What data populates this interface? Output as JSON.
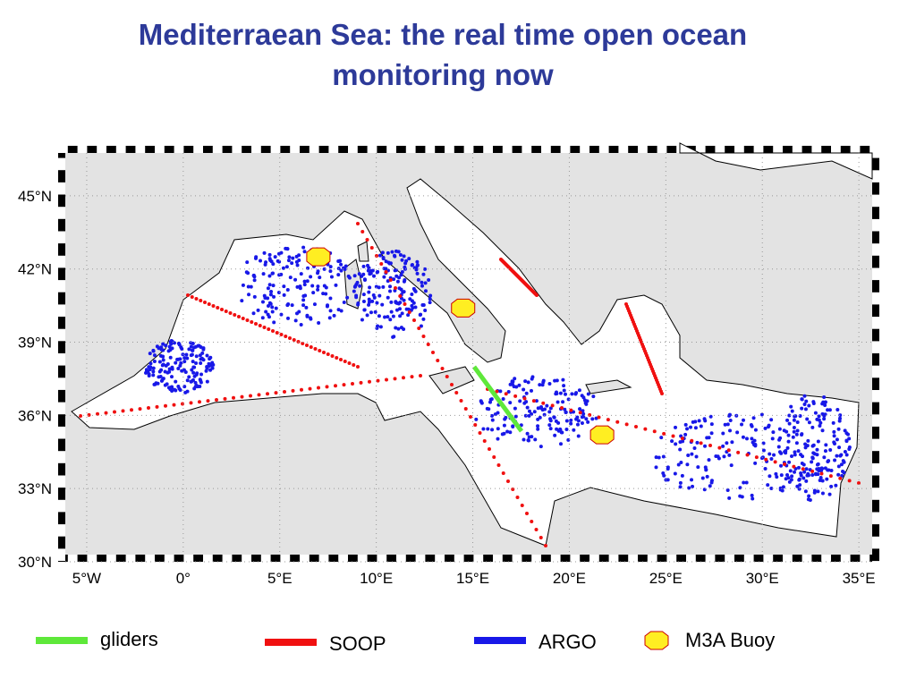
{
  "title": [
    "Mediterraean Sea: the real time open ocean",
    "monitoring now"
  ],
  "map": {
    "xlim": [
      -6.48,
      36.06
    ],
    "ylim": [
      30,
      47.05
    ],
    "xticks": [
      {
        "value": -5,
        "label": "5°W"
      },
      {
        "value": 0,
        "label": "0°"
      },
      {
        "value": 5,
        "label": "5°E"
      },
      {
        "value": 10,
        "label": "10°E"
      },
      {
        "value": 15,
        "label": "15°E"
      },
      {
        "value": 20,
        "label": "20°E"
      },
      {
        "value": 25,
        "label": "25°E"
      },
      {
        "value": 30,
        "label": "30°E"
      },
      {
        "value": 35,
        "label": "35°E"
      }
    ],
    "yticks": [
      {
        "value": 30,
        "label": "30°N"
      },
      {
        "value": 33,
        "label": "33°N"
      },
      {
        "value": 36,
        "label": "36°N"
      },
      {
        "value": 39,
        "label": "39°N"
      },
      {
        "value": 42,
        "label": "42°N"
      },
      {
        "value": 45,
        "label": "45°N"
      }
    ],
    "buoys": [
      {
        "lon": 7.0,
        "lat": 42.5
      },
      {
        "lon": 14.5,
        "lat": 40.4
      },
      {
        "lon": 21.7,
        "lat": 35.2
      }
    ]
  },
  "legend": [
    {
      "label": "gliders",
      "color": "#5ee83a"
    },
    {
      "label": "SOOP",
      "color": "#f01010"
    },
    {
      "label": "ARGO",
      "color": "#1818e8"
    },
    {
      "label": "M3A Buoy",
      "color": "#ffee22"
    }
  ]
}
